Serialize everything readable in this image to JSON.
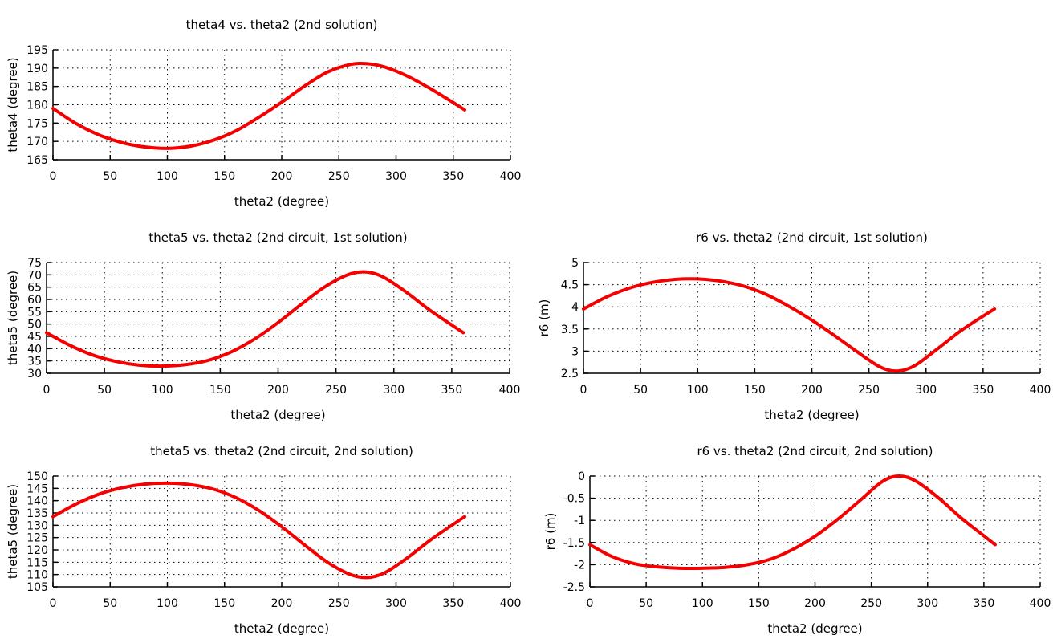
{
  "chart_data": [
    {
      "type": "line",
      "title": "theta4 vs. theta2 (2nd solution)",
      "xlabel": "theta2 (degree)",
      "ylabel": "theta4 (degree)",
      "xlim": [
        0,
        400
      ],
      "ylim": [
        165,
        195
      ],
      "xticks": [
        0,
        50,
        100,
        150,
        200,
        250,
        300,
        350,
        400
      ],
      "yticks": [
        165,
        170,
        175,
        180,
        185,
        190,
        195
      ],
      "grid": true,
      "color": "#f50000",
      "series": [
        {
          "x": [
            0,
            20,
            40,
            60,
            80,
            100,
            120,
            140,
            160,
            180,
            200,
            220,
            240,
            260,
            275,
            290,
            310,
            330,
            350,
            360
          ],
          "y": [
            179,
            174.9,
            171.8,
            169.7,
            168.5,
            168.1,
            168.7,
            170.3,
            172.9,
            176.6,
            180.7,
            185.1,
            188.9,
            191.0,
            191.2,
            190.3,
            187.8,
            184.4,
            180.6,
            178.6
          ]
        }
      ]
    },
    {
      "type": "line",
      "title": "theta5 vs. theta2 (2nd circuit, 1st solution)",
      "xlabel": "theta2 (degree)",
      "ylabel": "theta5 (degree)",
      "xlim": [
        0,
        400
      ],
      "ylim": [
        30,
        75
      ],
      "xticks": [
        0,
        50,
        100,
        150,
        200,
        250,
        300,
        350,
        400
      ],
      "yticks": [
        30,
        35,
        40,
        45,
        50,
        55,
        60,
        65,
        70,
        75
      ],
      "grid": true,
      "color": "#f50000",
      "series": [
        {
          "x": [
            0,
            20,
            40,
            60,
            80,
            100,
            120,
            140,
            160,
            180,
            200,
            220,
            240,
            260,
            275,
            290,
            310,
            330,
            350,
            360
          ],
          "y": [
            46.5,
            41.4,
            37.4,
            34.8,
            33.3,
            32.9,
            33.5,
            35.3,
            38.8,
            44.0,
            50.6,
            58.0,
            65.0,
            70.0,
            71.2,
            69.3,
            63.2,
            56.0,
            49.6,
            46.5
          ]
        }
      ]
    },
    {
      "type": "line",
      "title": "r6 vs. theta2 (2nd circuit, 1st solution)",
      "xlabel": "theta2 (degree)",
      "ylabel": "r6 (m)",
      "xlim": [
        0,
        400
      ],
      "ylim": [
        2.5,
        5
      ],
      "xticks": [
        0,
        50,
        100,
        150,
        200,
        250,
        300,
        350,
        400
      ],
      "yticks": [
        2.5,
        3,
        3.5,
        4,
        4.5,
        5
      ],
      "grid": true,
      "color": "#f50000",
      "series": [
        {
          "x": [
            0,
            20,
            40,
            60,
            80,
            100,
            120,
            140,
            160,
            180,
            200,
            220,
            240,
            260,
            275,
            290,
            310,
            330,
            350,
            360
          ],
          "y": [
            3.95,
            4.22,
            4.42,
            4.55,
            4.62,
            4.63,
            4.58,
            4.47,
            4.28,
            4.01,
            3.7,
            3.35,
            2.98,
            2.64,
            2.55,
            2.67,
            3.05,
            3.45,
            3.79,
            3.95
          ]
        }
      ]
    },
    {
      "type": "line",
      "title": "theta5 vs. theta2 (2nd circuit, 2nd solution)",
      "xlabel": "theta2 (degree)",
      "ylabel": "theta5 (degree)",
      "xlim": [
        0,
        400
      ],
      "ylim": [
        105,
        150
      ],
      "xticks": [
        0,
        50,
        100,
        150,
        200,
        250,
        300,
        350,
        400
      ],
      "yticks": [
        105,
        110,
        115,
        120,
        125,
        130,
        135,
        140,
        145,
        150
      ],
      "grid": true,
      "color": "#f50000",
      "series": [
        {
          "x": [
            0,
            20,
            40,
            60,
            80,
            100,
            120,
            140,
            160,
            180,
            200,
            220,
            240,
            260,
            275,
            290,
            310,
            330,
            350,
            360
          ],
          "y": [
            133.5,
            138.6,
            142.6,
            145.2,
            146.7,
            147.1,
            146.5,
            144.7,
            141.2,
            136.0,
            129.4,
            122.0,
            115.0,
            110.0,
            108.8,
            110.7,
            116.8,
            124.0,
            130.4,
            133.5
          ]
        }
      ]
    },
    {
      "type": "line",
      "title": "r6 vs. theta2 (2nd circuit, 2nd solution)",
      "xlabel": "theta2 (degree)",
      "ylabel": "r6 (m)",
      "xlim": [
        0,
        400
      ],
      "ylim": [
        -2.5,
        0
      ],
      "xticks": [
        0,
        50,
        100,
        150,
        200,
        250,
        300,
        350,
        400
      ],
      "yticks": [
        -2.5,
        -2,
        -1.5,
        -1,
        -0.5,
        0
      ],
      "grid": true,
      "color": "#f50000",
      "series": [
        {
          "x": [
            0,
            20,
            40,
            60,
            80,
            100,
            120,
            140,
            160,
            180,
            200,
            220,
            240,
            260,
            275,
            290,
            310,
            330,
            350,
            360
          ],
          "y": [
            -1.55,
            -1.82,
            -1.98,
            -2.05,
            -2.08,
            -2.08,
            -2.06,
            -2.0,
            -1.88,
            -1.66,
            -1.36,
            -0.98,
            -0.55,
            -0.12,
            0.0,
            -0.12,
            -0.5,
            -0.95,
            -1.35,
            -1.55
          ]
        }
      ]
    }
  ]
}
